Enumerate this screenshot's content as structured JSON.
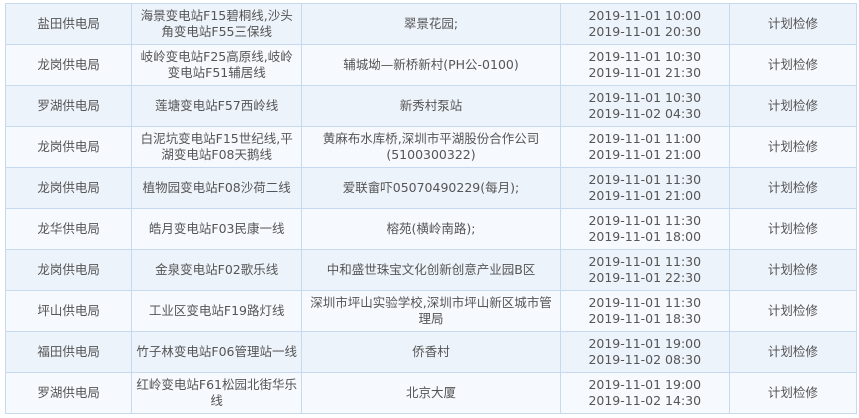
{
  "rows": [
    {
      "bureau": "盐田供电局",
      "line": "海景变电站F15碧桐线,沙头角变电站F55三保线",
      "area": "翠景花园;",
      "start": "2019-11-01 10:00",
      "end": "2019-11-01 20:30",
      "type": "计划检修"
    },
    {
      "bureau": "龙岗供电局",
      "line": "岐岭变电站F25高原线,岐岭变电站F51辅居线",
      "area": "辅城坳—新桥新村(PH公-0100)",
      "start": "2019-11-01 10:30",
      "end": "2019-11-01 21:30",
      "type": "计划检修"
    },
    {
      "bureau": "罗湖供电局",
      "line": "莲塘变电站F57西岭线",
      "area": "新秀村泵站",
      "start": "2019-11-01 10:30",
      "end": "2019-11-02 04:30",
      "type": "计划检修"
    },
    {
      "bureau": "龙岗供电局",
      "line": "白泥坑变电站F15世纪线,平湖变电站F08天鹅线",
      "area": "黄麻布水库桥,深圳市平湖股份合作公司(5100300322)",
      "start": "2019-11-01 11:00",
      "end": "2019-11-01 21:00",
      "type": "计划检修"
    },
    {
      "bureau": "龙岗供电局",
      "line": "植物园变电站F08沙荷二线",
      "area": "爱联畲吓05070490229(每月);",
      "start": "2019-11-01 11:30",
      "end": "2019-11-01 21:00",
      "type": "计划检修"
    },
    {
      "bureau": "龙华供电局",
      "line": "皓月变电站F03民康一线",
      "area": "榕苑(横岭南路);",
      "start": "2019-11-01 11:30",
      "end": "2019-11-01 18:00",
      "type": "计划检修"
    },
    {
      "bureau": "龙岗供电局",
      "line": "金泉变电站F02歌乐线",
      "area": "中和盛世珠宝文化创新创意产业园B区",
      "start": "2019-11-01 11:30",
      "end": "2019-11-01 22:30",
      "type": "计划检修"
    },
    {
      "bureau": "坪山供电局",
      "line": "工业区变电站F19路灯线",
      "area": "深圳市坪山实验学校,深圳市坪山新区城市管理局",
      "start": "2019-11-01 11:30",
      "end": "2019-11-01 18:30",
      "type": "计划检修"
    },
    {
      "bureau": "福田供电局",
      "line": "竹子林变电站F06管理站一线",
      "area": "侨香村",
      "start": "2019-11-01 19:00",
      "end": "2019-11-02 08:30",
      "type": "计划检修"
    },
    {
      "bureau": "罗湖供电局",
      "line": "红岭变电站F61松园北街华乐线",
      "area": "北京大厦",
      "start": "2019-11-01 19:00",
      "end": "2019-11-02 14:30",
      "type": "计划检修"
    }
  ]
}
